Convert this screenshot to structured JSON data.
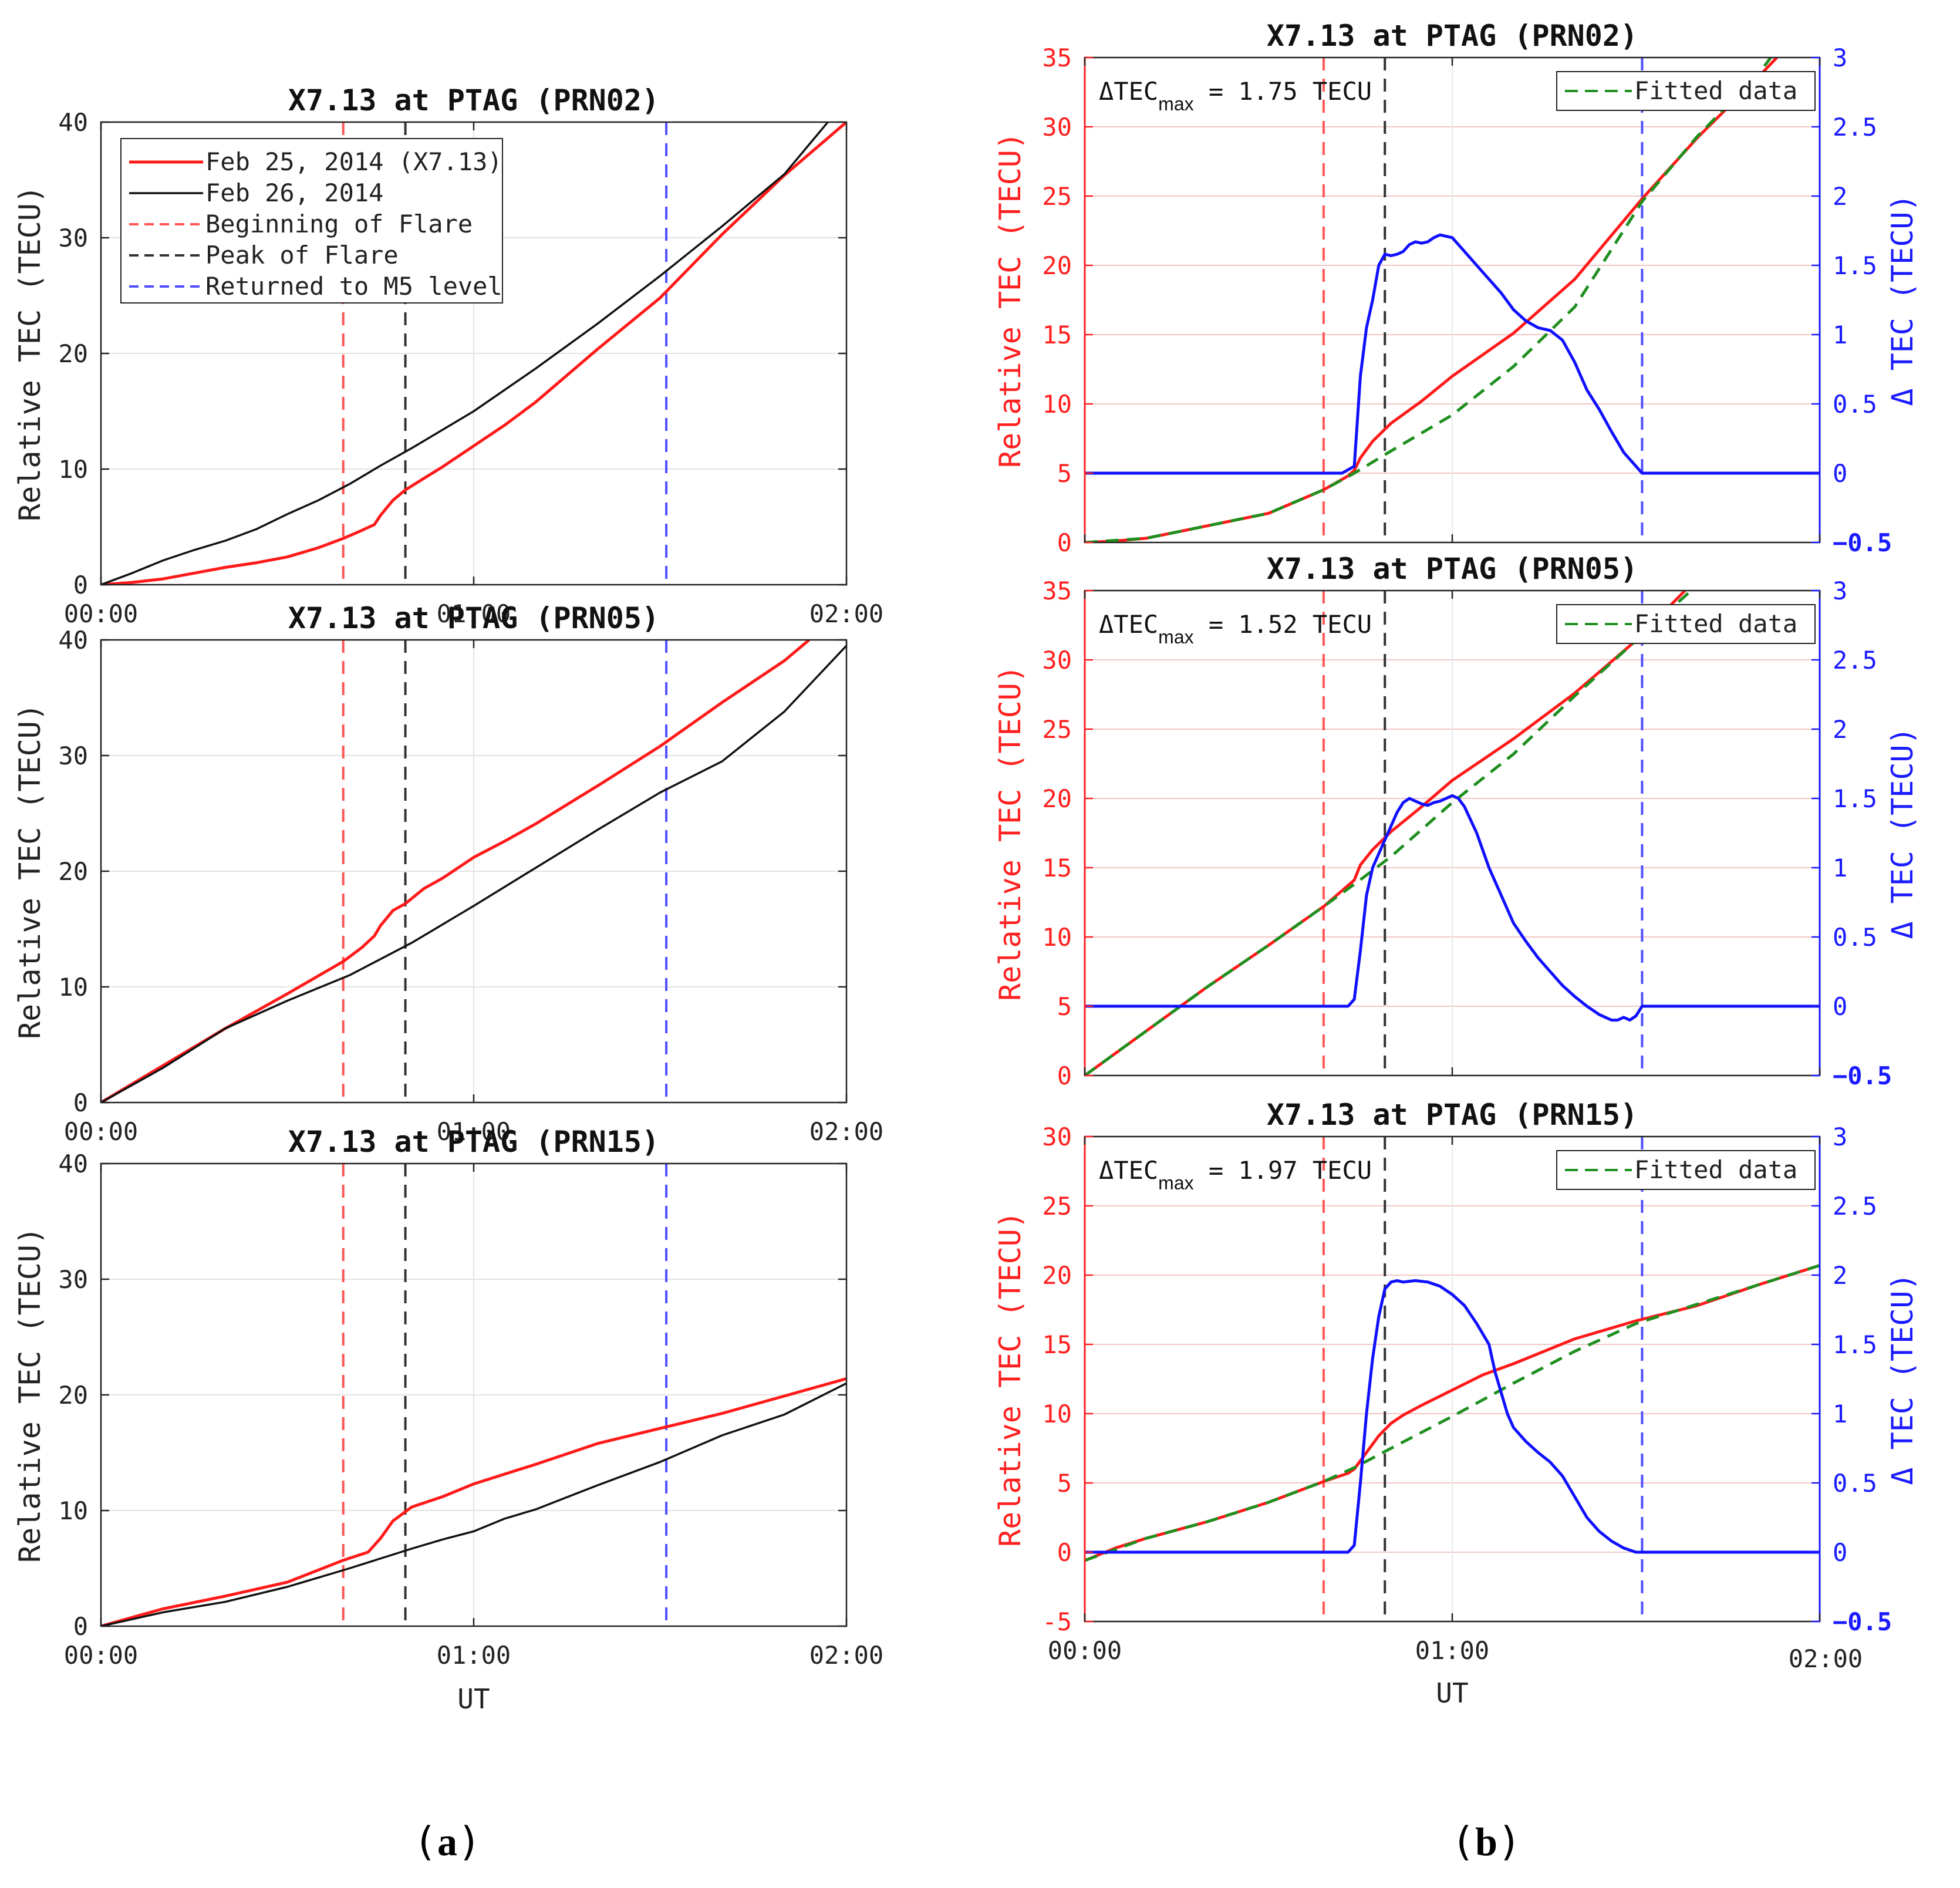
{
  "figure": {
    "panel_a_label": "a",
    "panel_b_label": "b"
  },
  "colors": {
    "feb25": "#ff1a1a",
    "feb26": "#111111",
    "beginning": "#ff5555",
    "peak": "#333333",
    "returned": "#4f4fff",
    "fitted": "#1f8f1f",
    "delta": "#1010ff"
  },
  "chart_data": [
    {
      "id": "a1",
      "type": "line",
      "title": "X7.13 at PTAG (PRN02)",
      "xlabel": "",
      "ylabel": "Relative TEC (TECU)",
      "xlim": [
        0,
        120
      ],
      "ylim": [
        0,
        40
      ],
      "yticks": [
        0,
        10,
        20,
        30,
        40
      ],
      "xticks": [
        0,
        60,
        120
      ],
      "xtick_labels": [
        "00:00",
        "01:00",
        "02:00"
      ],
      "grid": true,
      "vlines": [
        39,
        49,
        91
      ],
      "legend": [
        "Feb 25, 2014 (X7.13)",
        "Feb 26, 2014",
        "Beginning of Flare",
        "Peak of Flare",
        "Returned to M5 level"
      ],
      "series": [
        {
          "name": "Feb 25, 2014 (X7.13)",
          "color": "red",
          "x": [
            0,
            5,
            10,
            15,
            20,
            25,
            30,
            35,
            39,
            42,
            44,
            45,
            47,
            49,
            52,
            55,
            60,
            65,
            70,
            80,
            90,
            100,
            110,
            115,
            120
          ],
          "y": [
            0,
            0.2,
            0.5,
            1,
            1.5,
            1.9,
            2.4,
            3.2,
            4,
            4.7,
            5.2,
            6,
            7.3,
            8.2,
            9.2,
            10.2,
            12,
            13.8,
            15.8,
            20.4,
            24.8,
            30.3,
            35.4,
            37.7,
            40
          ]
        },
        {
          "name": "Feb 26, 2014",
          "color": "black",
          "x": [
            0,
            5,
            10,
            15,
            20,
            25,
            30,
            35,
            40,
            45,
            50,
            55,
            60,
            70,
            80,
            90,
            100,
            110,
            117
          ],
          "y": [
            0,
            1,
            2.1,
            3,
            3.8,
            4.8,
            6.1,
            7.3,
            8.7,
            10.3,
            11.8,
            13.4,
            15,
            18.7,
            22.6,
            26.7,
            31,
            35.5,
            40
          ]
        }
      ]
    },
    {
      "id": "a2",
      "type": "line",
      "title": "X7.13 at PTAG (PRN05)",
      "xlabel": "",
      "ylabel": "Relative TEC (TECU)",
      "xlim": [
        0,
        120
      ],
      "ylim": [
        0,
        40
      ],
      "yticks": [
        0,
        10,
        20,
        30,
        40
      ],
      "xticks": [
        0,
        60,
        120
      ],
      "xtick_labels": [
        "00:00",
        "01:00",
        "02:00"
      ],
      "grid": true,
      "vlines": [
        39,
        49,
        91
      ],
      "series": [
        {
          "name": "Feb 25, 2014 (X7.13)",
          "color": "red",
          "x": [
            0,
            10,
            20,
            30,
            39,
            42,
            44,
            45,
            47,
            49,
            52,
            55,
            60,
            65,
            70,
            80,
            90,
            100,
            110,
            114
          ],
          "y": [
            0,
            3.2,
            6.4,
            9.4,
            12.2,
            13.4,
            14.4,
            15.3,
            16.6,
            17.2,
            18.5,
            19.4,
            21.2,
            22.6,
            24.1,
            27.4,
            30.8,
            34.6,
            38.2,
            40
          ]
        },
        {
          "name": "Feb 26, 2014",
          "color": "black",
          "x": [
            0,
            10,
            20,
            30,
            40,
            50,
            60,
            70,
            80,
            90,
            100,
            110,
            120
          ],
          "y": [
            0,
            3,
            6.4,
            8.8,
            11,
            13.8,
            17,
            20.3,
            23.6,
            26.8,
            29.5,
            33.8,
            39.5
          ]
        }
      ]
    },
    {
      "id": "a3",
      "type": "line",
      "title": "X7.13 at PTAG (PRN15)",
      "xlabel": "UT",
      "ylabel": "Relative TEC (TECU)",
      "xlim": [
        0,
        120
      ],
      "ylim": [
        0,
        40
      ],
      "yticks": [
        0,
        10,
        20,
        30,
        40
      ],
      "xticks": [
        0,
        60,
        120
      ],
      "xtick_labels": [
        "00:00",
        "01:00",
        "02:00"
      ],
      "grid": true,
      "vlines": [
        39,
        49,
        91
      ],
      "series": [
        {
          "name": "Feb 25, 2014 (X7.13)",
          "color": "red",
          "x": [
            0,
            10,
            20,
            30,
            39,
            43,
            45,
            47,
            50,
            55,
            60,
            70,
            80,
            90,
            100,
            110,
            120
          ],
          "y": [
            0,
            1.5,
            2.6,
            3.8,
            5.7,
            6.4,
            7.6,
            9.1,
            10.3,
            11.2,
            12.3,
            14,
            15.8,
            17.1,
            18.4,
            19.9,
            21.4
          ]
        },
        {
          "name": "Feb 26, 2014",
          "color": "black",
          "x": [
            0,
            10,
            20,
            30,
            40,
            50,
            55,
            60,
            65,
            70,
            80,
            90,
            100,
            110,
            120
          ],
          "y": [
            0,
            1.2,
            2.1,
            3.4,
            5,
            6.7,
            7.5,
            8.2,
            9.3,
            10.1,
            12.2,
            14.2,
            16.5,
            18.3,
            21
          ]
        }
      ]
    },
    {
      "id": "b1",
      "type": "line",
      "title": "X7.13 at PTAG (PRN02)",
      "xlabel": "",
      "ylabel": "Relative TEC (TECU)",
      "ylabel_right": "Δ TEC (TECU)",
      "xlim": [
        0,
        120
      ],
      "ylim": [
        0,
        35
      ],
      "yticks": [
        0,
        5,
        10,
        15,
        20,
        25,
        30,
        35
      ],
      "ylim_right": [
        -0.5,
        3
      ],
      "yticks_right": [
        -0.5,
        0,
        0.5,
        1,
        1.5,
        2,
        2.5,
        3
      ],
      "ytick_labels_right": [
        "−0.5",
        "0",
        "0.5",
        "1",
        "1.5",
        "2",
        "2.5",
        "3"
      ],
      "xticks": [
        0,
        60,
        120
      ],
      "xtick_labels": [
        "",
        "",
        ""
      ],
      "grid": true,
      "vlines": [
        39,
        49,
        91
      ],
      "annotation": {
        "prefix": "ΔTEC",
        "sub": "max",
        "suffix": " = 1.75 TECU"
      },
      "legend": [
        "Fitted data"
      ],
      "series": [
        {
          "name": "Relative TEC",
          "color": "red",
          "x": [
            0,
            5,
            10,
            20,
            30,
            39,
            43,
            44,
            45,
            47,
            50,
            55,
            60,
            70,
            80,
            91,
            100,
            110,
            113
          ],
          "y": [
            0,
            0.1,
            0.3,
            1.2,
            2.1,
            3.8,
            4.8,
            5.2,
            6.1,
            7.3,
            8.6,
            10.2,
            12,
            15.1,
            19,
            24.8,
            29.2,
            33.6,
            35
          ]
        },
        {
          "name": "Fitted data",
          "color": "green",
          "dash": true,
          "x": [
            0,
            10,
            20,
            30,
            39,
            44,
            50,
            60,
            70,
            80,
            91,
            100,
            110,
            112
          ],
          "y": [
            0,
            0.3,
            1.2,
            2.1,
            3.8,
            5,
            6.6,
            9.2,
            12.7,
            17,
            24.6,
            29.3,
            33.8,
            35
          ]
        },
        {
          "name": "Δ TEC",
          "color": "blue",
          "axis": "right",
          "x": [
            0,
            42,
            44,
            45,
            46,
            47,
            48,
            49,
            50,
            51,
            52,
            53,
            54,
            55,
            56,
            57,
            58,
            60,
            62,
            64,
            66,
            68,
            70,
            72,
            74,
            76,
            78,
            80,
            82,
            84,
            86,
            88,
            90,
            91,
            95,
            100,
            120
          ],
          "y": [
            0,
            0,
            0.05,
            0.7,
            1.05,
            1.25,
            1.5,
            1.58,
            1.57,
            1.58,
            1.6,
            1.65,
            1.67,
            1.66,
            1.67,
            1.7,
            1.72,
            1.7,
            1.6,
            1.5,
            1.4,
            1.3,
            1.18,
            1.1,
            1.05,
            1.03,
            0.96,
            0.8,
            0.6,
            0.46,
            0.3,
            0.15,
            0.05,
            0,
            0,
            0,
            0
          ]
        }
      ]
    },
    {
      "id": "b2",
      "type": "line",
      "title": "X7.13 at PTAG (PRN05)",
      "xlabel": "",
      "ylabel": "Relative TEC (TECU)",
      "ylabel_right": "Δ TEC (TECU)",
      "xlim": [
        0,
        120
      ],
      "ylim": [
        0,
        35
      ],
      "yticks": [
        0,
        5,
        10,
        15,
        20,
        25,
        30,
        35
      ],
      "ylim_right": [
        -0.5,
        3
      ],
      "yticks_right": [
        -0.5,
        0,
        0.5,
        1,
        1.5,
        2,
        2.5,
        3
      ],
      "ytick_labels_right": [
        "−0.5",
        "0",
        "0.5",
        "1",
        "1.5",
        "2",
        "2.5",
        "3"
      ],
      "xticks": [
        0,
        60,
        120
      ],
      "xtick_labels": [
        "",
        "",
        ""
      ],
      "grid": true,
      "vlines": [
        39,
        49,
        91
      ],
      "annotation": {
        "prefix": "ΔTEC",
        "sub": "max",
        "suffix": " = 1.52 TECU"
      },
      "legend": [
        "Fitted data"
      ],
      "series": [
        {
          "name": "Relative TEC",
          "color": "red",
          "x": [
            0,
            10,
            20,
            30,
            39,
            44,
            45,
            47,
            50,
            55,
            60,
            65,
            70,
            80,
            90,
            98
          ],
          "y": [
            0,
            3.2,
            6.4,
            9.4,
            12.2,
            14.1,
            15.2,
            16.3,
            17.6,
            19.4,
            21.3,
            22.8,
            24.3,
            27.6,
            31.4,
            35
          ]
        },
        {
          "name": "Fitted data",
          "color": "green",
          "dash": true,
          "x": [
            0,
            10,
            20,
            30,
            39,
            44,
            50,
            60,
            70,
            80,
            90,
            99
          ],
          "y": [
            0,
            3.2,
            6.4,
            9.4,
            12.2,
            13.8,
            15.8,
            19.7,
            23.2,
            27.4,
            31.4,
            35
          ]
        },
        {
          "name": "Δ TEC",
          "color": "blue",
          "axis": "right",
          "x": [
            0,
            43,
            44,
            45,
            46,
            47,
            48,
            49,
            50,
            51,
            52,
            53,
            54,
            55,
            56,
            57,
            58,
            59,
            60,
            61,
            62,
            64,
            66,
            68,
            70,
            72,
            74,
            76,
            78,
            80,
            82,
            84,
            86,
            87,
            88,
            89,
            90,
            91,
            95,
            100,
            120
          ],
          "y": [
            0,
            0,
            0.05,
            0.4,
            0.8,
            1.0,
            1.1,
            1.2,
            1.3,
            1.4,
            1.47,
            1.5,
            1.48,
            1.46,
            1.45,
            1.47,
            1.48,
            1.5,
            1.52,
            1.5,
            1.44,
            1.25,
            1.0,
            0.8,
            0.6,
            0.47,
            0.35,
            0.25,
            0.15,
            0.07,
            0,
            -0.06,
            -0.1,
            -0.1,
            -0.08,
            -0.1,
            -0.07,
            0,
            0,
            0,
            0
          ]
        }
      ]
    },
    {
      "id": "b3",
      "type": "line",
      "title": "X7.13 at PTAG (PRN15)",
      "xlabel": "UT",
      "ylabel": "Relative TEC (TECU)",
      "ylabel_right": "Δ TEC (TECU)",
      "xlim": [
        0,
        120
      ],
      "ylim": [
        -5,
        30
      ],
      "yticks": [
        -5,
        0,
        5,
        10,
        15,
        20,
        25,
        30
      ],
      "ylim_right": [
        -0.5,
        3
      ],
      "yticks_right": [
        -0.5,
        0,
        0.5,
        1,
        1.5,
        2,
        2.5,
        3
      ],
      "ytick_labels_right": [
        "−0.5",
        "0",
        "0.5",
        "1",
        "1.5",
        "2",
        "2.5",
        "3"
      ],
      "xticks": [
        0,
        60,
        120
      ],
      "xtick_labels": [
        "00:00",
        "01:00",
        "02:00"
      ],
      "grid": true,
      "vlines": [
        39,
        49,
        91
      ],
      "annotation": {
        "prefix": "ΔTEC",
        "sub": "max",
        "suffix": " = 1.97 TECU"
      },
      "legend": [
        "Fitted data"
      ],
      "series": [
        {
          "name": "Relative TEC",
          "color": "red",
          "x": [
            0,
            5,
            10,
            20,
            30,
            39,
            43,
            44,
            46,
            48,
            50,
            52,
            55,
            60,
            65,
            70,
            80,
            90,
            100,
            110,
            120
          ],
          "y": [
            -0.6,
            0.3,
            1,
            2.2,
            3.6,
            5.1,
            5.7,
            6,
            7.2,
            8.4,
            9.3,
            9.9,
            10.6,
            11.7,
            12.8,
            13.6,
            15.4,
            16.7,
            17.8,
            19.3,
            20.7
          ]
        },
        {
          "name": "Fitted data",
          "color": "green",
          "dash": true,
          "x": [
            0,
            10,
            20,
            30,
            39,
            44,
            50,
            60,
            70,
            80,
            90,
            100,
            110,
            120
          ],
          "y": [
            -0.6,
            1,
            2.2,
            3.6,
            5.1,
            6.1,
            7.5,
            9.8,
            12.2,
            14.5,
            16.5,
            17.9,
            19.3,
            20.7
          ]
        },
        {
          "name": "Δ TEC",
          "color": "blue",
          "axis": "right",
          "x": [
            0,
            43,
            44,
            45,
            46,
            47,
            48,
            49,
            50,
            51,
            52,
            54,
            56,
            58,
            60,
            62,
            64,
            66,
            67,
            68,
            69,
            70,
            72,
            74,
            76,
            78,
            80,
            82,
            84,
            86,
            88,
            90,
            91,
            95,
            100,
            120
          ],
          "y": [
            0,
            0,
            0.05,
            0.5,
            1.0,
            1.4,
            1.7,
            1.9,
            1.95,
            1.96,
            1.95,
            1.96,
            1.95,
            1.92,
            1.86,
            1.78,
            1.65,
            1.5,
            1.3,
            1.15,
            1.0,
            0.9,
            0.8,
            0.72,
            0.65,
            0.55,
            0.4,
            0.25,
            0.15,
            0.08,
            0.03,
            0,
            0,
            0,
            0,
            0
          ]
        }
      ]
    }
  ]
}
